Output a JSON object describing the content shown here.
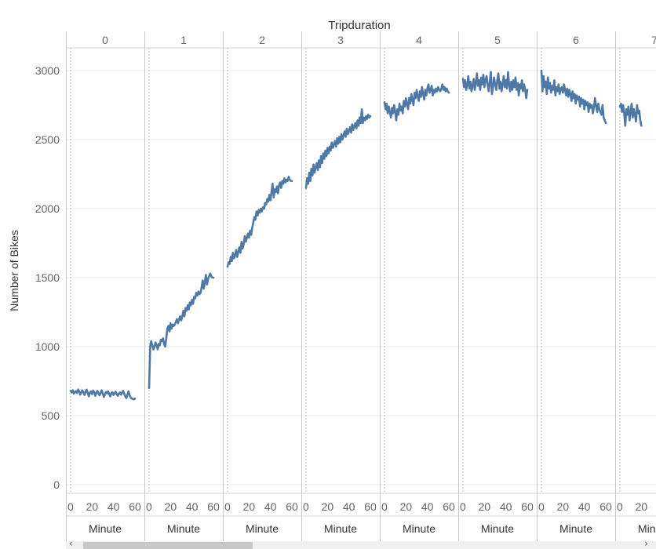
{
  "chart_data": {
    "type": "line",
    "title": "",
    "column_header": "Tripduration",
    "ylabel": "Number of Bikes",
    "xlabel": "Minute",
    "ylim": [
      0,
      3200
    ],
    "yticks": [
      0,
      500,
      1000,
      1500,
      2000,
      2500,
      3000
    ],
    "xticks": [
      0,
      20,
      40,
      60
    ],
    "x_range": [
      0,
      60
    ],
    "grid": true,
    "line_color": "#4e79a7",
    "panels": [
      {
        "tripduration": "0",
        "values": [
          680,
          668,
          684,
          660,
          672,
          678,
          664,
          690,
          676,
          652,
          670,
          684,
          666,
          650,
          675,
          688,
          662,
          640,
          668,
          676,
          656,
          682,
          670,
          644,
          664,
          679,
          660,
          648,
          668,
          684,
          658,
          636,
          654,
          672,
          662,
          676,
          654,
          640,
          664,
          670,
          650,
          662,
          674,
          656,
          644,
          660,
          668,
          652,
          666,
          680,
          660,
          640,
          628,
          652,
          676,
          648,
          630,
          624,
          622,
          618,
          624
        ]
      },
      {
        "tripduration": "1",
        "values": [
          700,
          1000,
          1040,
          1010,
          980,
          1000,
          1030,
          1010,
          980,
          1020,
          1010,
          1050,
          1040,
          1060,
          1020,
          1000,
          1060,
          1130,
          1150,
          1110,
          1170,
          1130,
          1160,
          1150,
          1160,
          1180,
          1200,
          1170,
          1200,
          1220,
          1190,
          1220,
          1260,
          1220,
          1280,
          1260,
          1300,
          1270,
          1320,
          1300,
          1340,
          1310,
          1360,
          1350,
          1390,
          1370,
          1400,
          1380,
          1390,
          1430,
          1480,
          1420,
          1470,
          1520,
          1450,
          1490,
          1510,
          1530,
          1510,
          1500,
          1500
        ]
      },
      {
        "tripduration": "2",
        "values": [
          1580,
          1610,
          1600,
          1650,
          1620,
          1680,
          1640,
          1660,
          1700,
          1650,
          1690,
          1720,
          1680,
          1760,
          1710,
          1740,
          1800,
          1760,
          1790,
          1820,
          1790,
          1840,
          1810,
          1860,
          1900,
          1940,
          1920,
          1980,
          1950,
          1990,
          1970,
          2000,
          1980,
          2010,
          2000,
          2040,
          2030,
          2070,
          2050,
          2100,
          2060,
          2120,
          2180,
          2080,
          2140,
          2120,
          2160,
          2110,
          2170,
          2190,
          2150,
          2200,
          2180,
          2220,
          2190,
          2210,
          2200,
          2230,
          2210,
          2200,
          2200
        ]
      },
      {
        "tripduration": "3",
        "values": [
          2150,
          2220,
          2180,
          2260,
          2200,
          2290,
          2240,
          2320,
          2260,
          2300,
          2330,
          2280,
          2350,
          2300,
          2380,
          2330,
          2400,
          2360,
          2420,
          2380,
          2440,
          2400,
          2450,
          2420,
          2480,
          2440,
          2460,
          2490,
          2450,
          2510,
          2470,
          2520,
          2480,
          2540,
          2500,
          2530,
          2560,
          2520,
          2580,
          2540,
          2560,
          2590,
          2550,
          2610,
          2570,
          2600,
          2620,
          2580,
          2640,
          2600,
          2660,
          2620,
          2720,
          2620,
          2660,
          2640,
          2670,
          2650,
          2680,
          2660,
          2670
        ]
      },
      {
        "tripduration": "4",
        "values": [
          2770,
          2720,
          2760,
          2690,
          2740,
          2700,
          2660,
          2730,
          2690,
          2750,
          2700,
          2640,
          2720,
          2680,
          2760,
          2710,
          2740,
          2690,
          2780,
          2740,
          2800,
          2760,
          2720,
          2800,
          2760,
          2830,
          2790,
          2750,
          2840,
          2800,
          2860,
          2810,
          2780,
          2850,
          2810,
          2880,
          2830,
          2790,
          2860,
          2820,
          2870,
          2900,
          2840,
          2860,
          2890,
          2820,
          2860,
          2840,
          2870,
          2850,
          2880,
          2860,
          2850,
          2870,
          2900,
          2860,
          2880,
          2850,
          2870,
          2850,
          2840
        ]
      },
      {
        "tripduration": "5",
        "values": [
          2940,
          2880,
          2930,
          2860,
          2900,
          2960,
          2870,
          2920,
          2850,
          2890,
          2940,
          2860,
          2910,
          2980,
          2890,
          2930,
          2860,
          2950,
          2900,
          2970,
          2880,
          2930,
          2960,
          2900,
          2850,
          2920,
          2990,
          2830,
          2880,
          2950,
          2900,
          2860,
          2930,
          2980,
          2870,
          2920,
          2850,
          2900,
          2960,
          2880,
          2930,
          2870,
          2990,
          2900,
          2850,
          2920,
          2860,
          2930,
          2880,
          2950,
          2860,
          2910,
          2820,
          2900,
          2870,
          2930,
          2850,
          2900,
          2860,
          2800,
          2860
        ]
      },
      {
        "tripduration": "6",
        "values": [
          3000,
          2850,
          2960,
          2880,
          2920,
          2830,
          2950,
          2870,
          2910,
          2840,
          2890,
          2860,
          2930,
          2820,
          2880,
          2850,
          2900,
          2830,
          2870,
          2880,
          2840,
          2900,
          2860,
          2820,
          2870,
          2810,
          2860,
          2830,
          2780,
          2850,
          2800,
          2830,
          2760,
          2820,
          2790,
          2810,
          2740,
          2800,
          2760,
          2790,
          2720,
          2780,
          2750,
          2770,
          2700,
          2760,
          2730,
          2750,
          2690,
          2740,
          2800,
          2740,
          2700,
          2760,
          2720,
          2700,
          2680,
          2750,
          2660,
          2640,
          2620
        ]
      },
      {
        "tripduration": "7",
        "values": [
          2740,
          2760,
          2700,
          2750,
          2690,
          2600,
          2720,
          2680,
          2740,
          2640,
          2700,
          2760,
          2660,
          2720,
          2680,
          2630,
          2750,
          2690,
          2710,
          2640,
          2600
        ]
      }
    ]
  },
  "scrollbar": {
    "left_arrow": "‹",
    "right_arrow": "›"
  }
}
